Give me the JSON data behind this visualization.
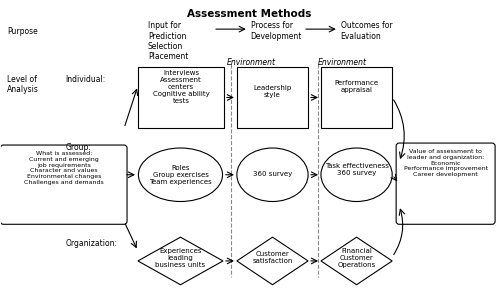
{
  "title": "Assessment Methods",
  "bg_color": "#ffffff",
  "purpose": "Purpose",
  "level_of_analysis": "Level of\nAnalysis",
  "individual": "Individual:",
  "group": "Group:",
  "organization": "Organization:",
  "input_for": "Input for\nPrediction\nSelection\nPlacement",
  "process_for": "Process for\nDevelopment",
  "outcomes_for": "Outcomes for\nEvaluation",
  "environment1": "Environment",
  "environment2": "Environment",
  "interviews": "Interviews\nAssessment\ncenters\nCognitive ability\ntests",
  "leadership_style": "Leadership\nstyle",
  "performance_appraisal": "Performance\nappraisal",
  "what_is_assessed": "What is assessed:\nCurrent and emerging\njob requirements\nCharacter and values\nEnvironmental changes\nChallenges and demands",
  "roles": "Roles\nGroup exercises\nTeam experiences",
  "survey_360": "360 survey",
  "task_effectiveness": "Task effectiveness\n360 survey",
  "value_of_assessment": "Value of assessment to\nleader and organization:\nEconomic\nPerformance improvement\nCareer development",
  "experiences": "Experiences\nleading\nbusiness units",
  "customer_satisfaction": "Customer\nsatisfaction",
  "financial": "Financial\nCustomer\nOperations"
}
